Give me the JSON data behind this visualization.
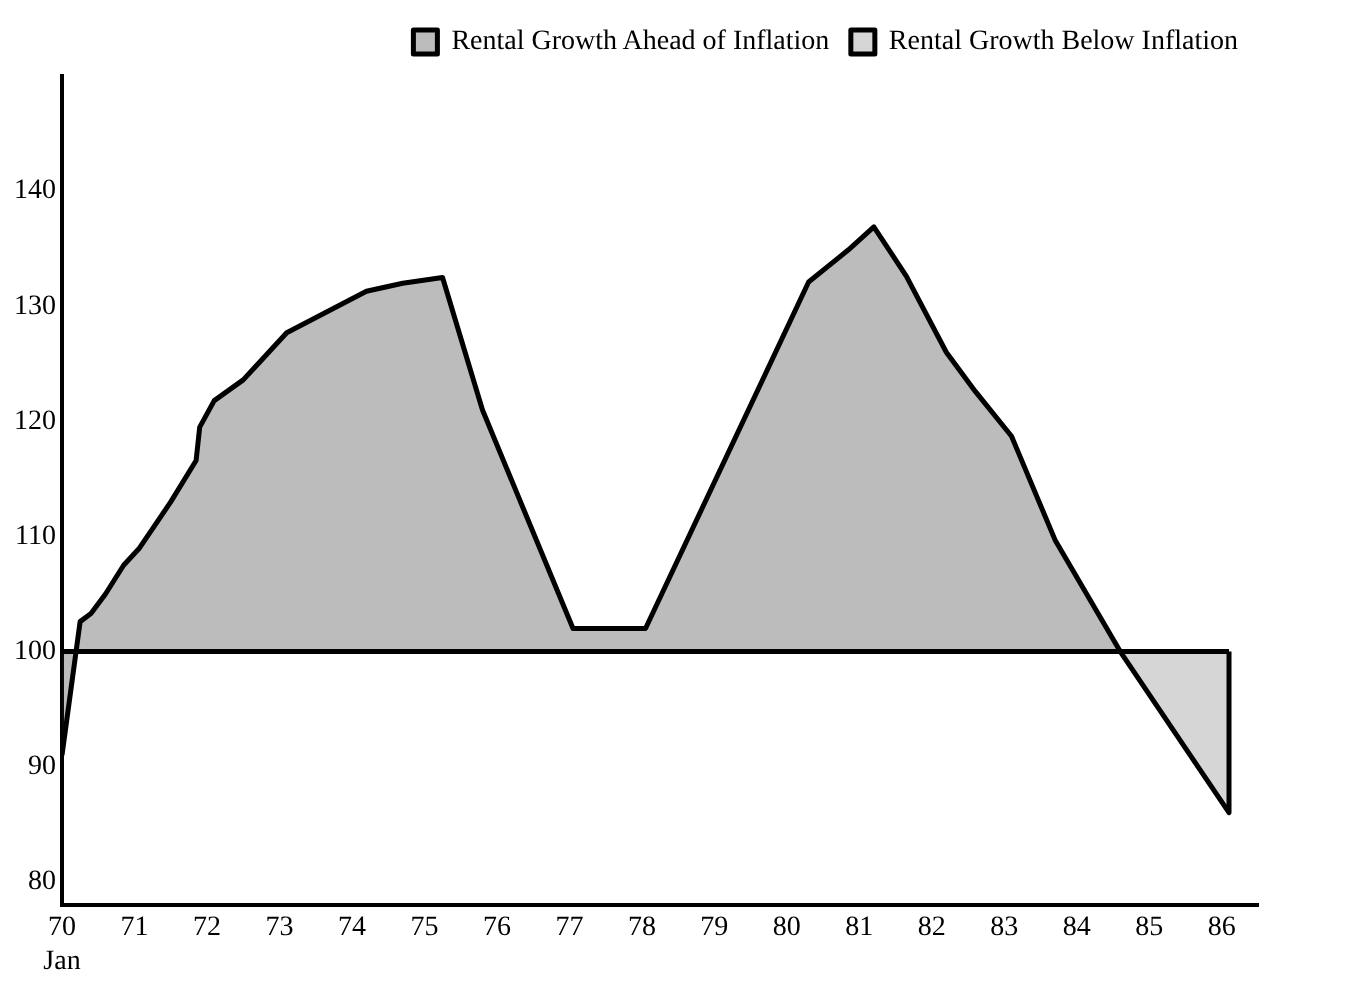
{
  "chart_data": {
    "type": "area",
    "xlim": [
      70,
      86.5
    ],
    "ylim": [
      78,
      150
    ],
    "xticks": [
      {
        "value": 70,
        "label": "70\nJan"
      },
      71,
      72,
      73,
      74,
      75,
      76,
      77,
      78,
      79,
      80,
      81,
      82,
      83,
      84,
      85,
      86
    ],
    "yticks": [
      80,
      90,
      100,
      110,
      120,
      130,
      140
    ],
    "grid": false,
    "legend": "top right",
    "marker": "none",
    "line_style": "solid",
    "ref_lines": [
      {
        "axis": "y",
        "value": 100
      }
    ],
    "series": [
      {
        "name": "Rental Growth Ahead of Inflation",
        "color": "#222222",
        "x": [
          70.0,
          70.25,
          70.4,
          70.6,
          70.85,
          71.07,
          71.5,
          71.85,
          71.9,
          72.1,
          72.5,
          73.1,
          74.2,
          74.7,
          75.25,
          75.8,
          77.05,
          78.05,
          80.3,
          80.85,
          81.2,
          81.65,
          82.2,
          82.6,
          83.1,
          83.7,
          84.6
        ],
        "values": [
          91,
          102.6,
          103.3,
          105,
          107.5,
          109,
          113,
          116.6,
          119.5,
          121.8,
          123.6,
          127.7,
          131.3,
          132,
          132.5,
          121,
          102,
          102,
          132.1,
          134.9,
          136.9,
          132.6,
          126,
          122.6,
          118.7,
          109.7,
          100
        ]
      },
      {
        "name": "Rental Growth Below Inflation",
        "color": "#777777",
        "x": [
          84.6,
          86.1,
          86.1
        ],
        "values": [
          100,
          86,
          100
        ]
      }
    ]
  }
}
